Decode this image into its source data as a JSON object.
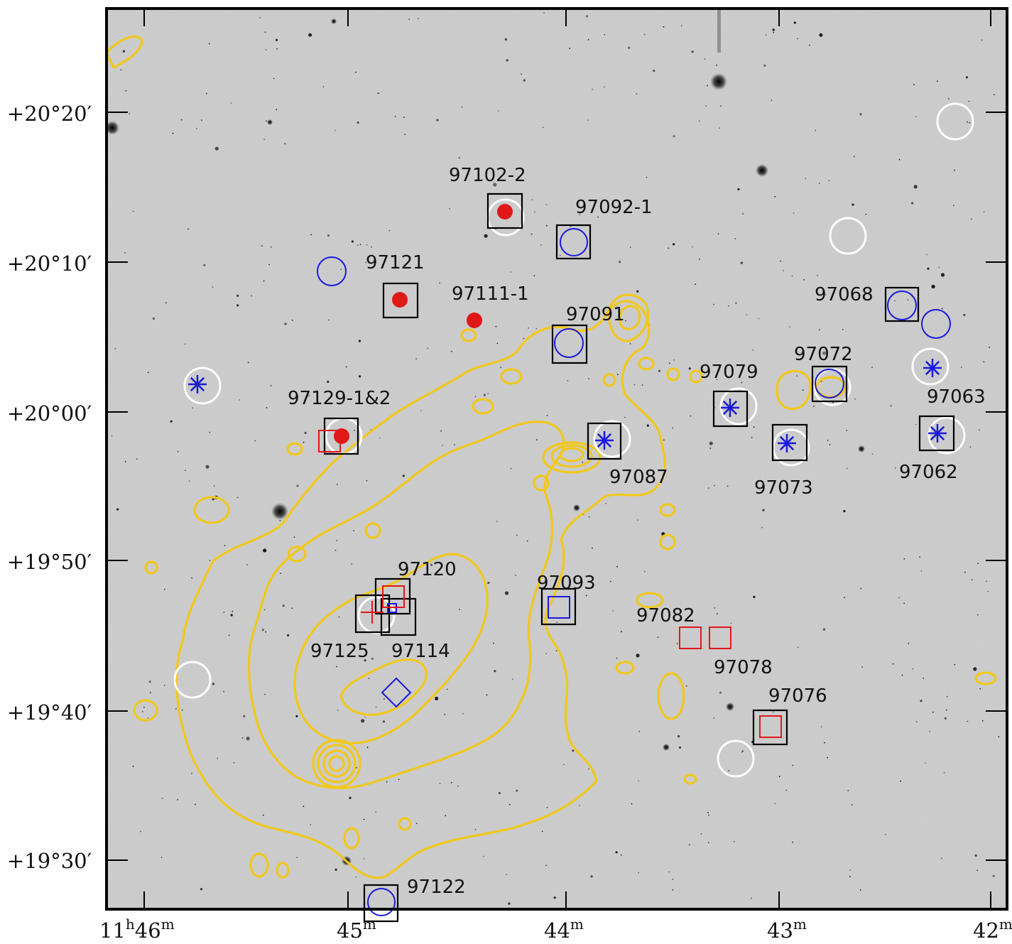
{
  "image": {
    "description_colors": {
      "sky": "#cdcdcd",
      "contour": "#f2c81a",
      "member_box": "#000000",
      "blue_marker": "#1a1adc",
      "red_marker": "#e01818",
      "white_circle": "#ffffff",
      "frame": "#000000"
    }
  },
  "axes": {
    "dec_labels": [
      "+20°20′",
      "+20°10′",
      "+20°00′",
      "+19°50′",
      "+19°40′",
      "+19°30′"
    ],
    "ra_labels": [
      {
        "base": "11",
        "sup1": "h",
        "mid": "46",
        "sup2": "m"
      },
      {
        "base": "45",
        "sup2": "m"
      },
      {
        "base": "44",
        "sup2": "m"
      },
      {
        "base": "43",
        "sup2": "m"
      },
      {
        "base": "42",
        "sup2": "m"
      }
    ]
  },
  "sources": [
    {
      "id": "97102-2",
      "label": "97102-2"
    },
    {
      "id": "97092-1",
      "label": "97092-1"
    },
    {
      "id": "97121",
      "label": "97121"
    },
    {
      "id": "97111-1",
      "label": "97111-1"
    },
    {
      "id": "97091",
      "label": "97091"
    },
    {
      "id": "97068",
      "label": "97068"
    },
    {
      "id": "97072",
      "label": "97072"
    },
    {
      "id": "97079",
      "label": "97079"
    },
    {
      "id": "97063",
      "label": "97063"
    },
    {
      "id": "97129",
      "label": "97129-1&2"
    },
    {
      "id": "97087",
      "label": "97087"
    },
    {
      "id": "97073",
      "label": "97073"
    },
    {
      "id": "97062",
      "label": "97062"
    },
    {
      "id": "97120",
      "label": "97120"
    },
    {
      "id": "97093",
      "label": "97093"
    },
    {
      "id": "97082",
      "label": "97082"
    },
    {
      "id": "97125",
      "label": "97125"
    },
    {
      "id": "97114",
      "label": "97114"
    },
    {
      "id": "97078",
      "label": "97078"
    },
    {
      "id": "97076",
      "label": "97076"
    },
    {
      "id": "97122",
      "label": "97122"
    }
  ]
}
